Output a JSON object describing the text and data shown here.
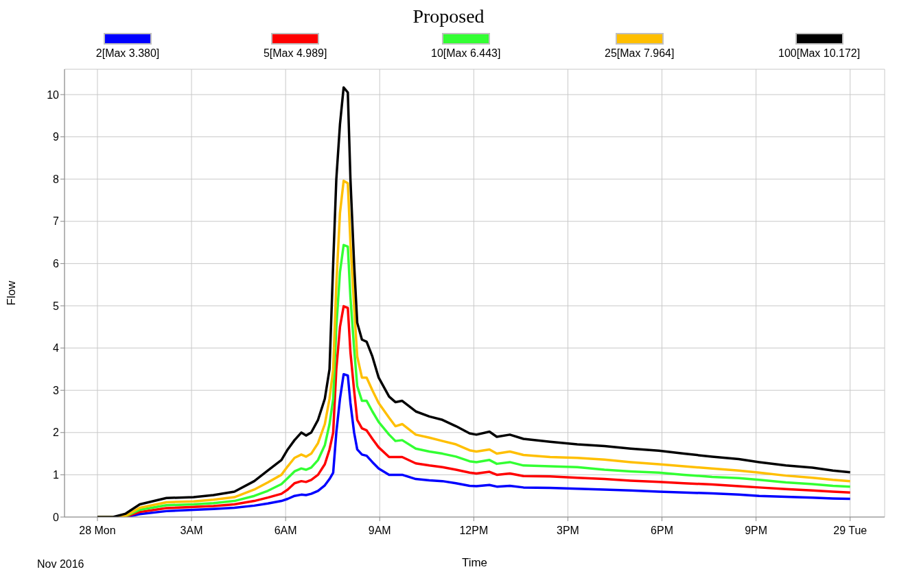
{
  "chart_data": {
    "type": "line",
    "title": "Proposed",
    "xlabel": "Time",
    "ylabel": "Flow",
    "legend": "top",
    "grid": true,
    "annotations": [
      "Nov 2016"
    ],
    "xlim": [
      "2016-11-27T22:57",
      "2016-11-29T01:06"
    ],
    "xticks": [
      {
        "value": "2016-11-28T00:00",
        "label": "28 Mon"
      },
      {
        "value": "2016-11-28T03:00",
        "label": "3AM"
      },
      {
        "value": "2016-11-28T06:00",
        "label": "6AM"
      },
      {
        "value": "2016-11-28T09:00",
        "label": "9AM"
      },
      {
        "value": "2016-11-28T12:00",
        "label": "12PM"
      },
      {
        "value": "2016-11-28T15:00",
        "label": "3PM"
      },
      {
        "value": "2016-11-28T18:00",
        "label": "6PM"
      },
      {
        "value": "2016-11-28T21:00",
        "label": "9PM"
      },
      {
        "value": "2016-11-29T00:00",
        "label": "29 Tue"
      }
    ],
    "ylim": [
      0,
      10.6
    ],
    "yticks": [
      0,
      1,
      2,
      3,
      4,
      5,
      6,
      7,
      8,
      9,
      10
    ],
    "x": [
      "2016-11-28T00:00",
      "2016-11-28T00:30",
      "2016-11-28T00:54",
      "2016-11-28T01:21",
      "2016-11-28T02:12",
      "2016-11-28T03:04",
      "2016-11-28T03:42",
      "2016-11-28T04:22",
      "2016-11-28T05:00",
      "2016-11-28T05:26",
      "2016-11-28T05:52",
      "2016-11-28T06:04",
      "2016-11-28T06:17",
      "2016-11-28T06:30",
      "2016-11-28T06:39",
      "2016-11-28T06:49",
      "2016-11-28T07:02",
      "2016-11-28T07:15",
      "2016-11-28T07:24",
      "2016-11-28T07:31",
      "2016-11-28T07:37",
      "2016-11-28T07:44",
      "2016-11-28T07:51",
      "2016-11-28T07:59",
      "2016-11-28T08:04",
      "2016-11-28T08:11",
      "2016-11-28T08:17",
      "2016-11-28T08:26",
      "2016-11-28T08:35",
      "2016-11-28T08:46",
      "2016-11-28T08:58",
      "2016-11-28T09:18",
      "2016-11-28T09:30",
      "2016-11-28T09:43",
      "2016-11-28T10:09",
      "2016-11-28T10:35",
      "2016-11-28T11:00",
      "2016-11-28T11:26",
      "2016-11-28T11:52",
      "2016-11-28T12:05",
      "2016-11-28T12:30",
      "2016-11-28T12:44",
      "2016-11-28T13:09",
      "2016-11-28T13:35",
      "2016-11-28T14:26",
      "2016-11-28T15:18",
      "2016-11-28T16:10",
      "2016-11-28T17:00",
      "2016-11-28T17:54",
      "2016-11-28T18:42",
      "2016-11-28T19:36",
      "2016-11-28T20:27",
      "2016-11-28T21:06",
      "2016-11-28T21:57",
      "2016-11-28T22:48",
      "2016-11-28T23:27",
      "2016-11-29T00:00"
    ],
    "series": [
      {
        "name": "2[Max 3.380]",
        "color": "#0000ff",
        "values": [
          0,
          0,
          0,
          0.07,
          0.14,
          0.17,
          0.19,
          0.22,
          0.27,
          0.32,
          0.38,
          0.43,
          0.5,
          0.53,
          0.52,
          0.55,
          0.62,
          0.75,
          0.9,
          1.05,
          2.0,
          2.8,
          3.38,
          3.35,
          2.7,
          2.0,
          1.6,
          1.48,
          1.45,
          1.3,
          1.15,
          1.0,
          1.0,
          1.0,
          0.9,
          0.87,
          0.85,
          0.8,
          0.74,
          0.73,
          0.76,
          0.72,
          0.74,
          0.7,
          0.69,
          0.67,
          0.65,
          0.63,
          0.6,
          0.58,
          0.56,
          0.53,
          0.5,
          0.48,
          0.46,
          0.44,
          0.43
        ]
      },
      {
        "name": "5[Max 4.989]",
        "color": "#ff0000",
        "values": [
          0,
          0,
          0.01,
          0.12,
          0.21,
          0.24,
          0.26,
          0.3,
          0.38,
          0.46,
          0.55,
          0.65,
          0.8,
          0.85,
          0.83,
          0.88,
          1.0,
          1.25,
          1.6,
          2.0,
          3.5,
          4.5,
          4.99,
          4.95,
          3.9,
          3.0,
          2.3,
          2.1,
          2.05,
          1.85,
          1.65,
          1.42,
          1.42,
          1.42,
          1.27,
          1.22,
          1.18,
          1.12,
          1.05,
          1.03,
          1.07,
          1.0,
          1.03,
          0.97,
          0.96,
          0.93,
          0.9,
          0.86,
          0.83,
          0.8,
          0.77,
          0.73,
          0.7,
          0.66,
          0.63,
          0.6,
          0.58
        ]
      },
      {
        "name": "10[Max 6.443]",
        "color": "#33ff33",
        "values": [
          0,
          0,
          0.02,
          0.17,
          0.28,
          0.3,
          0.33,
          0.38,
          0.5,
          0.62,
          0.78,
          0.92,
          1.08,
          1.15,
          1.12,
          1.17,
          1.35,
          1.7,
          2.2,
          2.8,
          4.5,
          5.8,
          6.44,
          6.4,
          5.2,
          4.0,
          3.1,
          2.75,
          2.75,
          2.5,
          2.25,
          1.95,
          1.8,
          1.82,
          1.62,
          1.55,
          1.5,
          1.43,
          1.32,
          1.3,
          1.35,
          1.26,
          1.3,
          1.22,
          1.2,
          1.18,
          1.12,
          1.08,
          1.05,
          1.0,
          0.95,
          0.92,
          0.88,
          0.82,
          0.78,
          0.74,
          0.72
        ]
      },
      {
        "name": "25[Max 7.964]",
        "color": "#ffbf00",
        "values": [
          0,
          0,
          0.03,
          0.22,
          0.35,
          0.37,
          0.41,
          0.47,
          0.65,
          0.82,
          1.0,
          1.2,
          1.4,
          1.48,
          1.43,
          1.5,
          1.75,
          2.2,
          2.8,
          3.5,
          5.5,
          7.2,
          7.96,
          7.9,
          6.5,
          5.0,
          3.8,
          3.3,
          3.3,
          3.0,
          2.7,
          2.35,
          2.15,
          2.2,
          1.95,
          1.88,
          1.8,
          1.72,
          1.58,
          1.55,
          1.6,
          1.5,
          1.55,
          1.47,
          1.42,
          1.4,
          1.36,
          1.3,
          1.25,
          1.2,
          1.15,
          1.1,
          1.05,
          0.98,
          0.93,
          0.88,
          0.85
        ]
      },
      {
        "name": "100[Max 10.172]",
        "color": "#000000",
        "values": [
          0,
          0,
          0.08,
          0.3,
          0.45,
          0.47,
          0.52,
          0.6,
          0.85,
          1.1,
          1.35,
          1.6,
          1.82,
          2.0,
          1.93,
          2.0,
          2.3,
          2.8,
          3.5,
          6,
          8.0,
          9.3,
          10.17,
          10.05,
          8,
          6,
          4.6,
          4.2,
          4.15,
          3.8,
          3.3,
          2.85,
          2.72,
          2.75,
          2.5,
          2.38,
          2.3,
          2.15,
          1.98,
          1.95,
          2.02,
          1.9,
          1.95,
          1.85,
          1.78,
          1.72,
          1.68,
          1.62,
          1.57,
          1.5,
          1.43,
          1.37,
          1.3,
          1.22,
          1.17,
          1.1,
          1.06
        ]
      }
    ]
  }
}
